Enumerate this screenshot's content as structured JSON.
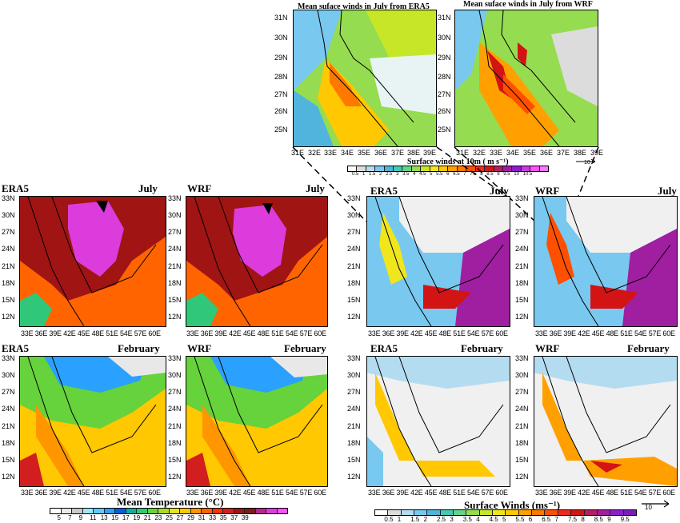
{
  "insets": {
    "era5_title": "Mean suface winds in July from ERA5",
    "wrf_title": "Mean suface winds in July from WRF",
    "ylabels": [
      "31N",
      "30N",
      "29N",
      "28N",
      "27N",
      "26N",
      "25N"
    ],
    "era5_xlabels": [
      "31E",
      "32E",
      "33E",
      "34E",
      "35E",
      "36E",
      "37E",
      "38E",
      "39E"
    ],
    "wrf_xlabels": [
      "31E",
      "32E",
      "33E",
      "34E",
      "35E",
      "36E",
      "37E",
      "38E",
      "39E"
    ],
    "colorbar_title": "Surface winds at 10m ( m s⁻¹)",
    "colorbar_labels": [
      "0.5",
      "1",
      "1.5",
      "2",
      "2.5",
      "3",
      "3.5",
      "4",
      "4.5",
      "5",
      "5.5",
      "6",
      "6.5",
      "7",
      "7.5",
      "8",
      "8.5",
      "9",
      "9.5",
      "10",
      "10.5"
    ],
    "vector_ref": "10"
  },
  "panels": {
    "t_era5_july": {
      "model": "ERA5",
      "month": "July"
    },
    "t_wrf_july": {
      "model": "WRF",
      "month": "July"
    },
    "t_era5_feb": {
      "model": "ERA5",
      "month": "February"
    },
    "t_wrf_feb": {
      "model": "WRF",
      "month": "February"
    },
    "w_era5_july": {
      "model": "ERA5",
      "month": "July"
    },
    "w_wrf_july": {
      "model": "WRF",
      "month": "July"
    },
    "w_era5_feb": {
      "model": "ERA5",
      "month": "February"
    },
    "w_wrf_feb": {
      "model": "WRF",
      "month": "February"
    }
  },
  "axes": {
    "ylabels": [
      "33N",
      "30N",
      "27N",
      "24N",
      "21N",
      "18N",
      "15N",
      "12N"
    ],
    "xlabels": "33E 36E 39E 42E 45E 48E 51E 54E 57E 60E"
  },
  "temperature_colorbar": {
    "title": "Mean Temperature (°C)",
    "labels": [
      "5",
      "7",
      "9",
      "11",
      "13",
      "15",
      "17",
      "19",
      "21",
      "23",
      "25",
      "27",
      "29",
      "31",
      "33",
      "35",
      "37",
      "39"
    ],
    "colors": [
      "#ffffff",
      "#e8e8e8",
      "#c8c8c8",
      "#a0e6ff",
      "#60c8ff",
      "#2aa0ff",
      "#0060e0",
      "#00b4a0",
      "#30c878",
      "#66d23c",
      "#a8dc28",
      "#e6e61e",
      "#ffc800",
      "#ff9600",
      "#ff6400",
      "#ff3200",
      "#d21e1e",
      "#a01414",
      "#781e1e",
      "#b4288c",
      "#dc3cdc",
      "#ff50ff"
    ]
  },
  "winds_colorbar": {
    "title": "Surface Winds (ms⁻¹)",
    "labels": [
      "0.5",
      "1",
      "1.5",
      "2",
      "2.5",
      "3",
      "3.5",
      "4",
      "4.5",
      "5",
      "5.5",
      "6",
      "6.5",
      "7",
      "7.5",
      "8",
      "8.5",
      "9",
      "9.5"
    ],
    "colors": [
      "#ffffff",
      "#dcdcdc",
      "#b4dcf0",
      "#78c8f0",
      "#50b4dc",
      "#46c8b4",
      "#64d28c",
      "#96dc50",
      "#c8e628",
      "#f0e61e",
      "#ffc800",
      "#ffa000",
      "#ff7800",
      "#ff5000",
      "#f0281e",
      "#d21414",
      "#b41e64",
      "#a01ea0",
      "#8c1ec8",
      "#781eb4"
    ],
    "vector_ref": "10"
  }
}
